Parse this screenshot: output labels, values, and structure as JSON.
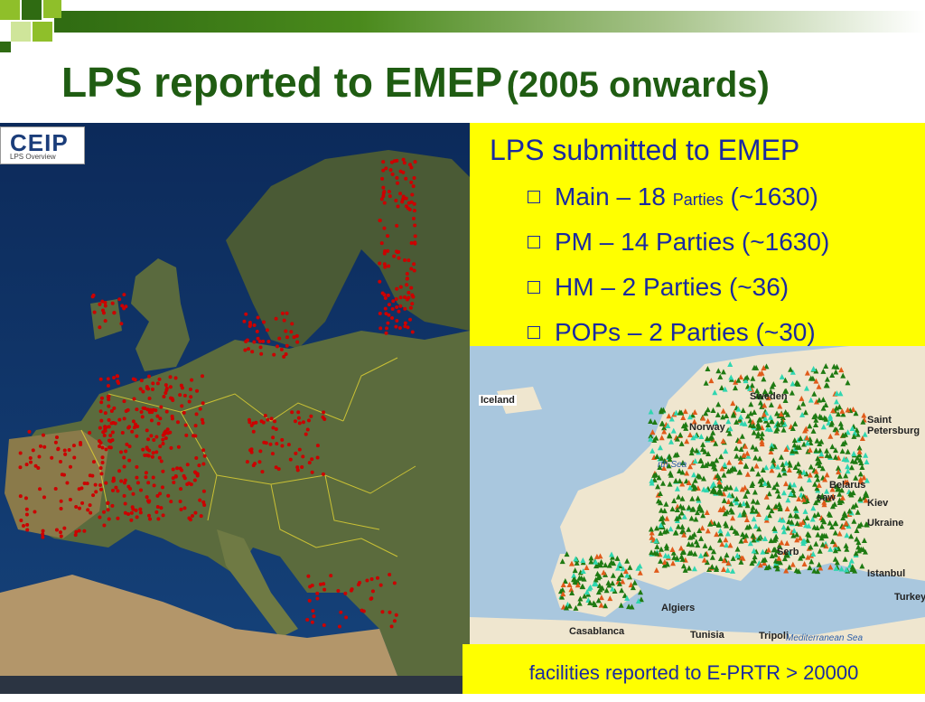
{
  "title": {
    "main": "LPS reported to EMEP",
    "sub": "(2005 onwards)"
  },
  "logo": {
    "name": "CEIP",
    "subtitle": "LPS Overview"
  },
  "panel": {
    "heading": "LPS submitted to EMEP",
    "items": [
      {
        "prefix": "Main – 18 ",
        "small": "Parties",
        "suffix": " (~1630)"
      },
      {
        "prefix": "PM – 14 Parties (~1630)",
        "small": "",
        "suffix": ""
      },
      {
        "prefix": "HM – 2 Parties (~36)",
        "small": "",
        "suffix": ""
      },
      {
        "prefix": "POPs – 2 Parties (~30)",
        "small": "",
        "suffix": ""
      }
    ]
  },
  "right_map_labels": {
    "iceland": "Iceland",
    "sweden": "Sweden",
    "norway": "Norway",
    "saint": "Saint",
    "petersburg": "Petersburg",
    "north_sea": "rth Sea",
    "belarus": "Belarus",
    "kiev": "Kiev",
    "ukraine": "Ukraine",
    "saw": "saw",
    "serb": "Serb",
    "istanbul": "Istanbul",
    "turkey": "Turkey",
    "algiers": "Algiers",
    "tunisia": "Tunisia",
    "tripoli": "Tripoli",
    "casablanca": "Casablanca",
    "med_sea": "Mediterranean Sea"
  },
  "caption": "facilities reported to E-PRTR > 20000",
  "colors": {
    "title": "#1f5c12",
    "text": "#1a2aa0",
    "highlight": "#ffff00",
    "lps_points": "#cc0000",
    "eprtr_points": "#1e7a12"
  }
}
